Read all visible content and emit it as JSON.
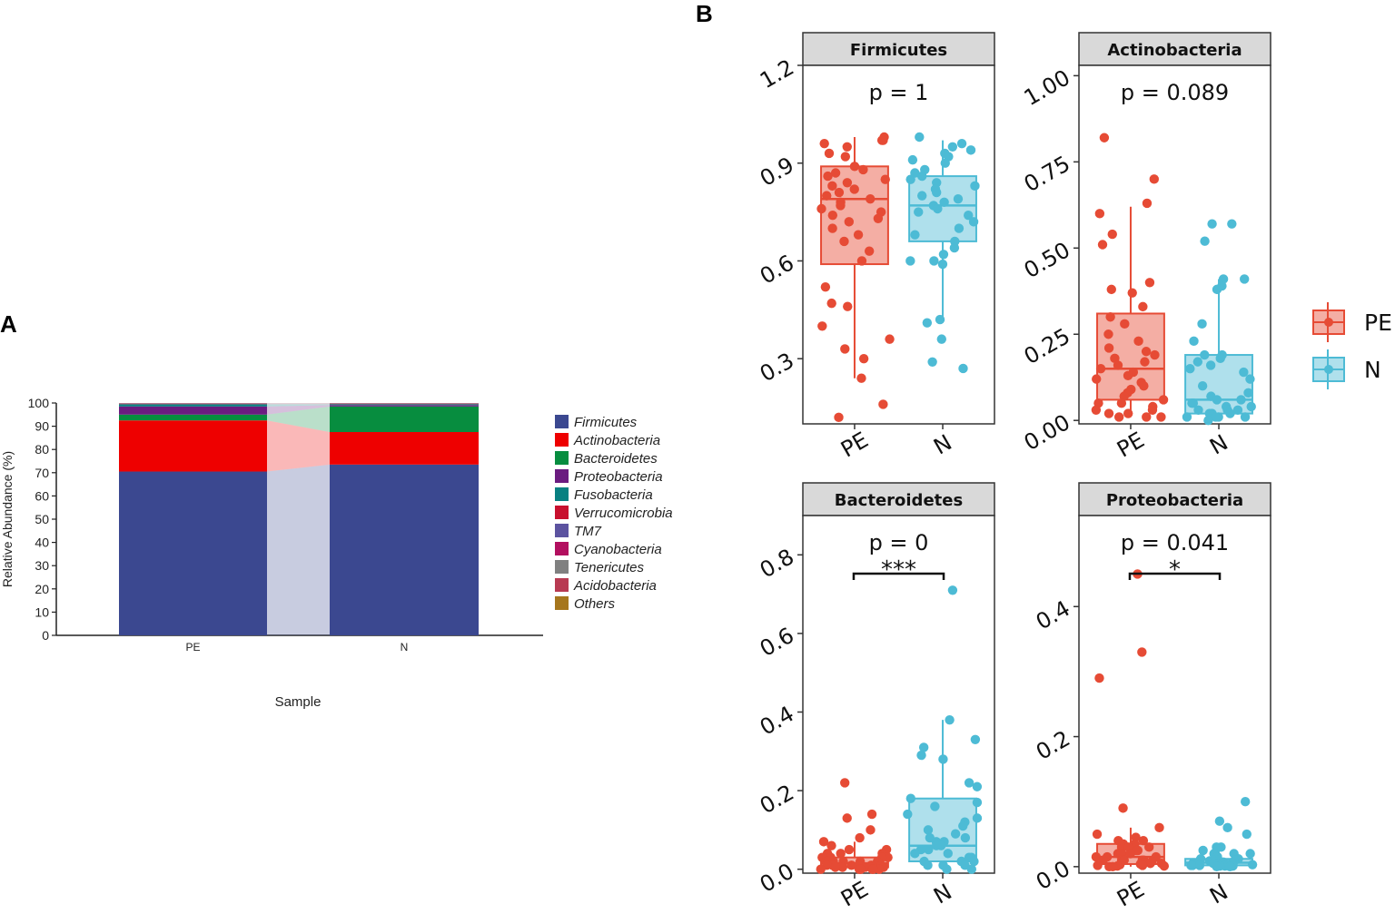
{
  "panel_labels": {
    "a": "A",
    "b": "B"
  },
  "colors": {
    "PE": "#e64b35",
    "N": "#4dbbd5"
  },
  "chart_data": [
    {
      "type": "bar",
      "stacked": true,
      "title": "",
      "xlabel": "Sample",
      "ylabel": "Relative Abundance (%)",
      "ylim": [
        0,
        100
      ],
      "yticks": [
        0,
        10,
        20,
        30,
        40,
        50,
        60,
        70,
        80,
        90,
        100
      ],
      "categories": [
        "PE",
        "N"
      ],
      "legend_position": "right",
      "series": [
        {
          "name": "Firmicutes",
          "color": "#3b4890",
          "values": [
            70.5,
            73.5
          ]
        },
        {
          "name": "Actinobacteria",
          "color": "#ee0000",
          "values": [
            22.0,
            14.0
          ]
        },
        {
          "name": "Bacteroidetes",
          "color": "#078d3f",
          "values": [
            2.5,
            11.0
          ]
        },
        {
          "name": "Proteobacteria",
          "color": "#6b1c80",
          "values": [
            3.5,
            0.6
          ]
        },
        {
          "name": "Fusobacteria",
          "color": "#088081",
          "values": [
            1.0,
            0.4
          ]
        },
        {
          "name": "Verrucomicrobia",
          "color": "#c8102e",
          "values": [
            0.1,
            0.1
          ]
        },
        {
          "name": "TM7",
          "color": "#5c53a0",
          "values": [
            0.1,
            0.1
          ]
        },
        {
          "name": "Cyanobacteria",
          "color": "#b20f5f",
          "values": [
            0.1,
            0.1
          ]
        },
        {
          "name": "Tenericutes",
          "color": "#808080",
          "values": [
            0.1,
            0.1
          ]
        },
        {
          "name": "Acidobacteria",
          "color": "#b83a52",
          "values": [
            0.05,
            0.05
          ]
        },
        {
          "name": "Others",
          "color": "#a6761d",
          "values": [
            0.05,
            0.05
          ]
        }
      ]
    },
    {
      "type": "box",
      "title": "Firmicutes",
      "p_label": "p = 1",
      "sig_label": "",
      "ylim": [
        0.1,
        1.2
      ],
      "yticks": [
        {
          "v": 0.3,
          "t": "0.3"
        },
        {
          "v": 0.6,
          "t": "0.6"
        },
        {
          "v": 0.9,
          "t": "0.9"
        },
        {
          "v": 1.2,
          "t": "1.2"
        }
      ],
      "groups": [
        {
          "name": "PE",
          "box": {
            "whislo": 0.24,
            "q1": 0.59,
            "med": 0.79,
            "q3": 0.89,
            "whishi": 0.98
          },
          "points": [
            0.97,
            0.98,
            0.96,
            0.95,
            0.97,
            0.93,
            0.92,
            0.89,
            0.88,
            0.87,
            0.86,
            0.85,
            0.84,
            0.83,
            0.82,
            0.81,
            0.8,
            0.79,
            0.78,
            0.77,
            0.76,
            0.75,
            0.74,
            0.73,
            0.72,
            0.7,
            0.68,
            0.66,
            0.63,
            0.6,
            0.52,
            0.47,
            0.46,
            0.4,
            0.36,
            0.33,
            0.3,
            0.24,
            0.16,
            0.12
          ]
        },
        {
          "name": "N",
          "box": {
            "whislo": 0.42,
            "q1": 0.66,
            "med": 0.77,
            "q3": 0.86,
            "whishi": 0.97
          },
          "points": [
            0.98,
            0.96,
            0.95,
            0.94,
            0.93,
            0.92,
            0.91,
            0.9,
            0.88,
            0.87,
            0.86,
            0.85,
            0.84,
            0.83,
            0.82,
            0.81,
            0.8,
            0.79,
            0.78,
            0.77,
            0.76,
            0.75,
            0.74,
            0.72,
            0.7,
            0.68,
            0.66,
            0.64,
            0.62,
            0.6,
            0.6,
            0.59,
            0.42,
            0.41,
            0.36,
            0.29,
            0.27
          ]
        }
      ]
    },
    {
      "type": "box",
      "title": "Actinobacteria",
      "p_label": "p = 0.089",
      "sig_label": "",
      "ylim": [
        -0.01,
        1.03
      ],
      "yticks": [
        {
          "v": 0.0,
          "t": "0.00"
        },
        {
          "v": 0.25,
          "t": "0.25"
        },
        {
          "v": 0.5,
          "t": "0.50"
        },
        {
          "v": 0.75,
          "t": "0.75"
        },
        {
          "v": 1.0,
          "t": "1.00"
        }
      ],
      "groups": [
        {
          "name": "PE",
          "box": {
            "whislo": 0.01,
            "q1": 0.06,
            "med": 0.15,
            "q3": 0.31,
            "whishi": 0.62
          },
          "points": [
            0.82,
            0.7,
            0.63,
            0.6,
            0.54,
            0.51,
            0.4,
            0.38,
            0.37,
            0.33,
            0.3,
            0.28,
            0.25,
            0.23,
            0.21,
            0.2,
            0.19,
            0.18,
            0.17,
            0.16,
            0.15,
            0.14,
            0.13,
            0.12,
            0.11,
            0.1,
            0.09,
            0.08,
            0.07,
            0.06,
            0.05,
            0.05,
            0.04,
            0.03,
            0.03,
            0.02,
            0.02,
            0.01,
            0.01,
            0.01
          ]
        },
        {
          "name": "N",
          "box": {
            "whislo": 0.0,
            "q1": 0.02,
            "med": 0.06,
            "q3": 0.19,
            "whishi": 0.41
          },
          "points": [
            0.57,
            0.57,
            0.52,
            0.41,
            0.41,
            0.39,
            0.38,
            0.28,
            0.23,
            0.19,
            0.19,
            0.18,
            0.17,
            0.16,
            0.15,
            0.14,
            0.12,
            0.1,
            0.08,
            0.07,
            0.06,
            0.06,
            0.05,
            0.05,
            0.04,
            0.04,
            0.03,
            0.03,
            0.03,
            0.02,
            0.02,
            0.02,
            0.01,
            0.01,
            0.01,
            0.01,
            0.0
          ]
        }
      ]
    },
    {
      "type": "box",
      "title": "Bacteroidetes",
      "p_label": "p = 0",
      "sig_label": "***",
      "ylim": [
        -0.01,
        0.9
      ],
      "yticks": [
        {
          "v": 0.0,
          "t": "0.0"
        },
        {
          "v": 0.2,
          "t": "0.2"
        },
        {
          "v": 0.4,
          "t": "0.4"
        },
        {
          "v": 0.6,
          "t": "0.6"
        },
        {
          "v": 0.8,
          "t": "0.8"
        }
      ],
      "groups": [
        {
          "name": "PE",
          "box": {
            "whislo": 0.0,
            "q1": 0.005,
            "med": 0.015,
            "q3": 0.03,
            "whishi": 0.07
          },
          "points": [
            0.22,
            0.14,
            0.13,
            0.1,
            0.08,
            0.07,
            0.06,
            0.05,
            0.05,
            0.04,
            0.04,
            0.04,
            0.03,
            0.03,
            0.03,
            0.03,
            0.02,
            0.02,
            0.02,
            0.02,
            0.02,
            0.02,
            0.01,
            0.01,
            0.01,
            0.01,
            0.01,
            0.01,
            0.01,
            0.005,
            0.005,
            0.005,
            0.005,
            0.0,
            0.0,
            0.0,
            0.0,
            0.0,
            0.0,
            0.0
          ]
        },
        {
          "name": "N",
          "box": {
            "whislo": 0.0,
            "q1": 0.02,
            "med": 0.06,
            "q3": 0.18,
            "whishi": 0.38
          },
          "points": [
            0.71,
            0.38,
            0.33,
            0.31,
            0.29,
            0.28,
            0.22,
            0.21,
            0.18,
            0.17,
            0.16,
            0.14,
            0.13,
            0.12,
            0.11,
            0.1,
            0.09,
            0.08,
            0.08,
            0.07,
            0.07,
            0.06,
            0.06,
            0.05,
            0.05,
            0.04,
            0.04,
            0.03,
            0.03,
            0.02,
            0.02,
            0.02,
            0.01,
            0.01,
            0.01,
            0.0,
            0.0
          ]
        }
      ]
    },
    {
      "type": "box",
      "title": "Proteobacteria",
      "p_label": "p = 0.041",
      "sig_label": "*",
      "ylim": [
        -0.01,
        0.54
      ],
      "yticks": [
        {
          "v": 0.0,
          "t": "0.0"
        },
        {
          "v": 0.2,
          "t": "0.2"
        },
        {
          "v": 0.4,
          "t": "0.4"
        }
      ],
      "groups": [
        {
          "name": "PE",
          "box": {
            "whislo": 0.0,
            "q1": 0.004,
            "med": 0.015,
            "q3": 0.035,
            "whishi": 0.06
          },
          "points": [
            0.45,
            0.33,
            0.29,
            0.09,
            0.06,
            0.05,
            0.045,
            0.04,
            0.04,
            0.035,
            0.035,
            0.03,
            0.03,
            0.03,
            0.025,
            0.025,
            0.02,
            0.02,
            0.02,
            0.02,
            0.015,
            0.015,
            0.015,
            0.01,
            0.01,
            0.01,
            0.01,
            0.01,
            0.008,
            0.006,
            0.005,
            0.005,
            0.004,
            0.003,
            0.002,
            0.002,
            0.001,
            0.001,
            0.0,
            0.0
          ]
        },
        {
          "name": "N",
          "box": {
            "whislo": 0.0,
            "q1": 0.002,
            "med": 0.006,
            "q3": 0.012,
            "whishi": 0.03
          },
          "points": [
            0.1,
            0.07,
            0.06,
            0.05,
            0.03,
            0.03,
            0.025,
            0.02,
            0.02,
            0.02,
            0.015,
            0.015,
            0.012,
            0.012,
            0.01,
            0.01,
            0.01,
            0.009,
            0.008,
            0.008,
            0.007,
            0.006,
            0.006,
            0.005,
            0.005,
            0.004,
            0.004,
            0.003,
            0.003,
            0.002,
            0.002,
            0.002,
            0.001,
            0.001,
            0.001,
            0.0,
            0.0
          ]
        }
      ]
    }
  ],
  "legend_b": {
    "items": [
      "PE",
      "N"
    ]
  }
}
